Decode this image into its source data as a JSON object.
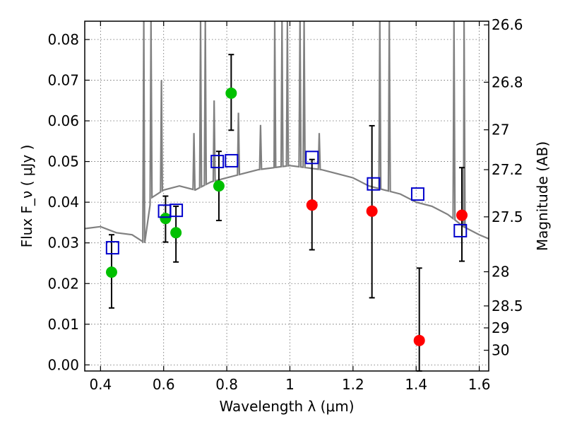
{
  "chart_data": {
    "type": "scatter",
    "title": "",
    "xlabel": "Wavelength  λ (μm)",
    "ylabel": "Flux  F_ν  ( μJy )",
    "ylabel_right": "Magnitude (AB)",
    "xlim": [
      0.35,
      1.63
    ],
    "ylim": [
      -0.0015,
      0.0845
    ],
    "grid": true,
    "x_ticks": [
      0.4,
      0.6,
      0.8,
      1.0,
      1.2,
      1.4,
      1.6
    ],
    "x_tick_labels": [
      "0.4",
      "0.6",
      "0.8",
      "1",
      "1.2",
      "1.4",
      "1.6"
    ],
    "y_ticks": [
      0.0,
      0.01,
      0.02,
      0.03,
      0.04,
      0.05,
      0.06,
      0.07,
      0.08
    ],
    "y_tick_labels": [
      "0.00",
      "0.01",
      "0.02",
      "0.03",
      "0.04",
      "0.05",
      "0.06",
      "0.07",
      "0.08"
    ],
    "right_ticks": [
      {
        "flux": 0.0836,
        "label": "26.6"
      },
      {
        "flux": 0.0695,
        "label": "26.8"
      },
      {
        "flux": 0.0578,
        "label": "27"
      },
      {
        "flux": 0.048,
        "label": "27.2"
      },
      {
        "flux": 0.0364,
        "label": "27.5"
      },
      {
        "flux": 0.0229,
        "label": "28"
      },
      {
        "flux": 0.0145,
        "label": "28.5"
      },
      {
        "flux": 0.0091,
        "label": "29"
      },
      {
        "flux": 0.0036,
        "label": "30"
      }
    ],
    "series": [
      {
        "marker": "circle",
        "color": "#00c000",
        "points": [
          {
            "x": 0.435,
            "y": 0.0228,
            "ylo": 0.014,
            "yhi": 0.032
          },
          {
            "x": 0.606,
            "y": 0.036,
            "ylo": 0.0302,
            "yhi": 0.0415
          },
          {
            "x": 0.639,
            "y": 0.0325,
            "ylo": 0.0253,
            "yhi": 0.039
          },
          {
            "x": 0.775,
            "y": 0.044,
            "ylo": 0.0355,
            "yhi": 0.0525
          },
          {
            "x": 0.814,
            "y": 0.0668,
            "ylo": 0.0577,
            "yhi": 0.0763
          }
        ]
      },
      {
        "marker": "circle",
        "color": "#ff0000",
        "points": [
          {
            "x": 1.07,
            "y": 0.0393,
            "ylo": 0.0283,
            "yhi": 0.0505
          },
          {
            "x": 1.26,
            "y": 0.0378,
            "ylo": 0.0165,
            "yhi": 0.0588
          },
          {
            "x": 1.41,
            "y": 0.006,
            "ylo": -0.002,
            "yhi": 0.0238
          },
          {
            "x": 1.545,
            "y": 0.0368,
            "ylo": 0.0255,
            "yhi": 0.0485
          }
        ]
      },
      {
        "marker": "square",
        "color": "#0000cc",
        "points": [
          {
            "x": 0.438,
            "y": 0.0288
          },
          {
            "x": 0.603,
            "y": 0.0378
          },
          {
            "x": 0.64,
            "y": 0.038
          },
          {
            "x": 0.77,
            "y": 0.05
          },
          {
            "x": 0.815,
            "y": 0.0502
          },
          {
            "x": 1.07,
            "y": 0.051
          },
          {
            "x": 1.265,
            "y": 0.0445
          },
          {
            "x": 1.405,
            "y": 0.042
          },
          {
            "x": 1.54,
            "y": 0.033
          }
        ]
      }
    ],
    "model_spectrum": {
      "color": "#808080",
      "continuum": [
        [
          0.35,
          0.0335
        ],
        [
          0.4,
          0.034
        ],
        [
          0.45,
          0.0325
        ],
        [
          0.5,
          0.032
        ],
        [
          0.52,
          0.031
        ],
        [
          0.54,
          0.03
        ],
        [
          0.56,
          0.041
        ],
        [
          0.6,
          0.043
        ],
        [
          0.65,
          0.044
        ],
        [
          0.7,
          0.043
        ],
        [
          0.75,
          0.045
        ],
        [
          0.8,
          0.046
        ],
        [
          0.85,
          0.047
        ],
        [
          0.9,
          0.048
        ],
        [
          0.95,
          0.0485
        ],
        [
          1.0,
          0.049
        ],
        [
          1.05,
          0.0485
        ],
        [
          1.1,
          0.048
        ],
        [
          1.15,
          0.047
        ],
        [
          1.2,
          0.046
        ],
        [
          1.25,
          0.044
        ],
        [
          1.3,
          0.043
        ],
        [
          1.35,
          0.042
        ],
        [
          1.4,
          0.04
        ],
        [
          1.45,
          0.039
        ],
        [
          1.5,
          0.037
        ],
        [
          1.55,
          0.034
        ],
        [
          1.6,
          0.032
        ],
        [
          1.63,
          0.031
        ]
      ],
      "emission_lines": [
        {
          "x": 0.537,
          "peak": 0.0845
        },
        {
          "x": 0.56,
          "peak": 0.0845
        },
        {
          "x": 0.593,
          "peak": 0.07
        },
        {
          "x": 0.696,
          "peak": 0.057
        },
        {
          "x": 0.717,
          "peak": 0.0845
        },
        {
          "x": 0.732,
          "peak": 0.0845
        },
        {
          "x": 0.76,
          "peak": 0.065
        },
        {
          "x": 0.837,
          "peak": 0.062
        },
        {
          "x": 0.907,
          "peak": 0.059
        },
        {
          "x": 0.952,
          "peak": 0.0845
        },
        {
          "x": 0.975,
          "peak": 0.0845
        },
        {
          "x": 0.992,
          "peak": 0.0845
        },
        {
          "x": 1.032,
          "peak": 0.0845
        },
        {
          "x": 1.045,
          "peak": 0.0845
        },
        {
          "x": 1.093,
          "peak": 0.057
        },
        {
          "x": 1.285,
          "peak": 0.0845
        },
        {
          "x": 1.315,
          "peak": 0.0845
        },
        {
          "x": 1.52,
          "peak": 0.0845
        },
        {
          "x": 1.552,
          "peak": 0.0845
        }
      ]
    }
  }
}
